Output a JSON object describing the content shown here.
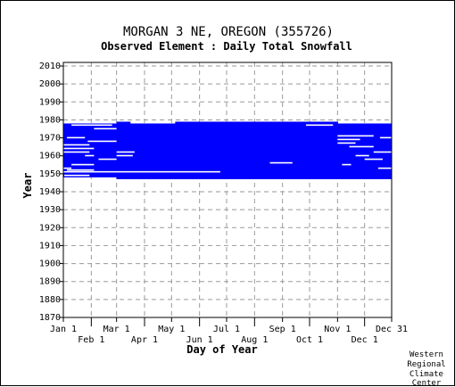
{
  "chart_data": {
    "type": "heatmap",
    "title": "MORGAN 3 NE, OREGON   (355726)",
    "subtitle": "Observed Element : Daily Total Snowfall",
    "xlabel": "Day of Year",
    "ylabel": "Year",
    "xlim": [
      1,
      365
    ],
    "ylim": [
      1870,
      2012
    ],
    "x_ticks_top": [
      {
        "label": "Jan 1",
        "day": 1
      },
      {
        "label": "Mar 1",
        "day": 60
      },
      {
        "label": "May 1",
        "day": 121
      },
      {
        "label": "Jul 1",
        "day": 182
      },
      {
        "label": "Sep 1",
        "day": 244
      },
      {
        "label": "Nov 1",
        "day": 305
      },
      {
        "label": "Dec 31",
        "day": 365
      }
    ],
    "x_ticks_bottom": [
      {
        "label": "Feb 1",
        "day": 32
      },
      {
        "label": "Apr 1",
        "day": 91
      },
      {
        "label": "Jun 1",
        "day": 152
      },
      {
        "label": "Aug 1",
        "day": 213
      },
      {
        "label": "Oct 1",
        "day": 274
      },
      {
        "label": "Dec 1",
        "day": 335
      }
    ],
    "y_ticks": [
      1870,
      1880,
      1890,
      1900,
      1910,
      1920,
      1930,
      1940,
      1950,
      1960,
      1970,
      1980,
      1990,
      2000,
      2010
    ],
    "grid": true,
    "data_color": "#0000ff",
    "coverage": [
      {
        "from_day": 1,
        "to_day": 60,
        "start_year": 1948,
        "end_year": 1978
      },
      {
        "from_day": 60,
        "to_day": 75,
        "start_year": 1947,
        "end_year": 1979
      },
      {
        "from_day": 75,
        "to_day": 95,
        "start_year": 1947,
        "end_year": 1978
      },
      {
        "from_day": 95,
        "to_day": 125,
        "start_year": 1947,
        "end_year": 1978
      },
      {
        "from_day": 125,
        "to_day": 195,
        "start_year": 1947,
        "end_year": 1979
      },
      {
        "from_day": 195,
        "to_day": 245,
        "start_year": 1947,
        "end_year": 1979
      },
      {
        "from_day": 245,
        "to_day": 305,
        "start_year": 1947,
        "end_year": 1979
      },
      {
        "from_day": 305,
        "to_day": 365,
        "start_year": 1947,
        "end_year": 1978
      }
    ],
    "gaps": [
      {
        "from_day": 10,
        "to_day": 55,
        "year": 1977
      },
      {
        "from_day": 35,
        "to_day": 60,
        "year": 1975
      },
      {
        "from_day": 5,
        "to_day": 25,
        "year": 1970
      },
      {
        "from_day": 28,
        "to_day": 60,
        "year": 1968
      },
      {
        "from_day": 1,
        "to_day": 30,
        "year": 1966
      },
      {
        "from_day": 1,
        "to_day": 35,
        "year": 1964
      },
      {
        "from_day": 1,
        "to_day": 30,
        "year": 1962
      },
      {
        "from_day": 25,
        "to_day": 35,
        "year": 1960
      },
      {
        "from_day": 40,
        "to_day": 60,
        "year": 1958
      },
      {
        "from_day": 10,
        "to_day": 35,
        "year": 1955
      },
      {
        "from_day": 1,
        "to_day": 10,
        "year": 1953
      },
      {
        "from_day": 5,
        "to_day": 35,
        "year": 1952
      },
      {
        "from_day": 1,
        "to_day": 175,
        "year": 1951
      },
      {
        "from_day": 2,
        "to_day": 30,
        "year": 1949
      },
      {
        "from_day": 60,
        "to_day": 80,
        "year": 1962
      },
      {
        "from_day": 60,
        "to_day": 78,
        "year": 1960
      },
      {
        "from_day": 230,
        "to_day": 255,
        "year": 1956
      },
      {
        "from_day": 270,
        "to_day": 300,
        "year": 1977
      },
      {
        "from_day": 305,
        "to_day": 345,
        "year": 1971
      },
      {
        "from_day": 305,
        "to_day": 330,
        "year": 1969
      },
      {
        "from_day": 305,
        "to_day": 325,
        "year": 1967
      },
      {
        "from_day": 318,
        "to_day": 345,
        "year": 1965
      },
      {
        "from_day": 345,
        "to_day": 365,
        "year": 1962
      },
      {
        "from_day": 335,
        "to_day": 355,
        "year": 1958
      },
      {
        "from_day": 310,
        "to_day": 320,
        "year": 1955
      },
      {
        "from_day": 350,
        "to_day": 365,
        "year": 1953
      },
      {
        "from_day": 352,
        "to_day": 365,
        "year": 1970
      },
      {
        "from_day": 325,
        "to_day": 340,
        "year": 1960
      }
    ]
  },
  "credit": [
    "Western",
    "Regional",
    "Climate",
    "Center"
  ]
}
